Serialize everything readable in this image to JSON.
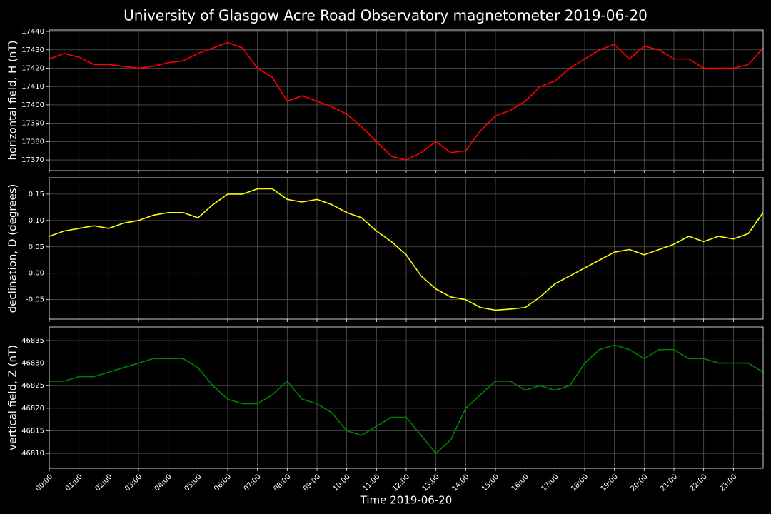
{
  "title": "University of Glasgow Acre Road Observatory magnetometer 2019-06-20",
  "chart_data": [
    {
      "type": "line",
      "ylabel": "horizontal field, H (nT)",
      "color": "#ff0000",
      "x": [
        0,
        0.5,
        1,
        1.5,
        2,
        2.5,
        3,
        3.5,
        4,
        4.5,
        5,
        5.5,
        6,
        6.5,
        7,
        7.5,
        8,
        8.5,
        9,
        9.5,
        10,
        10.5,
        11,
        11.5,
        12,
        12.5,
        13,
        13.5,
        14,
        14.5,
        15,
        15.5,
        16,
        16.5,
        17,
        17.5,
        18,
        18.5,
        19,
        19.5,
        20,
        20.5,
        21,
        21.5,
        22,
        22.5,
        23,
        23.5,
        24
      ],
      "values": [
        17425,
        17428,
        17426,
        17422,
        17422,
        17421,
        17420,
        17421,
        17423,
        17424,
        17428,
        17431,
        17434,
        17431,
        17420,
        17415,
        17402,
        17405,
        17402,
        17399,
        17395,
        17388,
        17380,
        17372,
        17370,
        17374,
        17380,
        17374,
        17375,
        17386,
        17394,
        17397,
        17402,
        17410,
        17413,
        17420,
        17425,
        17430,
        17433,
        17425,
        17432,
        17430,
        17425,
        17425,
        17420,
        17420,
        17420,
        17422,
        17431
      ],
      "xlim": [
        0,
        24
      ],
      "ylim": [
        17364.2,
        17440.8
      ],
      "yticks": [
        17370,
        17380,
        17390,
        17400,
        17410,
        17420,
        17430,
        17440
      ],
      "grid": true
    },
    {
      "type": "line",
      "ylabel": "declination, D (degrees)",
      "color": "#ffff00",
      "x": [
        0,
        0.5,
        1,
        1.5,
        2,
        2.5,
        3,
        3.5,
        4,
        4.5,
        5,
        5.5,
        6,
        6.5,
        7,
        7.5,
        8,
        8.5,
        9,
        9.5,
        10,
        10.5,
        11,
        11.5,
        12,
        12.5,
        13,
        13.5,
        14,
        14.5,
        15,
        15.5,
        16,
        16.5,
        17,
        17.5,
        18,
        18.5,
        19,
        19.5,
        20,
        20.5,
        21,
        21.5,
        22,
        22.5,
        23,
        23.5,
        24
      ],
      "values": [
        0.07,
        0.08,
        0.085,
        0.09,
        0.085,
        0.095,
        0.1,
        0.11,
        0.115,
        0.115,
        0.105,
        0.13,
        0.15,
        0.15,
        0.16,
        0.16,
        0.14,
        0.135,
        0.14,
        0.13,
        0.115,
        0.105,
        0.08,
        0.06,
        0.035,
        -0.005,
        -0.03,
        -0.045,
        -0.05,
        -0.065,
        -0.07,
        -0.068,
        -0.065,
        -0.045,
        -0.02,
        -0.005,
        0.01,
        0.025,
        0.04,
        0.045,
        0.035,
        0.045,
        0.055,
        0.07,
        0.06,
        0.07,
        0.065,
        0.075,
        0.115
      ],
      "xlim": [
        0,
        24
      ],
      "ylim": [
        -0.087,
        0.181
      ],
      "yticks": [
        -0.05,
        {
          "value": 0,
          "label": "0.00"
        },
        0.05,
        {
          "value": 0.1,
          "label": "0.10"
        },
        0.15
      ],
      "grid": true
    },
    {
      "type": "line",
      "ylabel": "vertical field, Z (nT)",
      "xlabel": "Time 2019-06-20",
      "color": "#008000",
      "x": [
        0,
        0.5,
        1,
        1.5,
        2,
        2.5,
        3,
        3.5,
        4,
        4.5,
        5,
        5.5,
        6,
        6.5,
        7,
        7.5,
        8,
        8.5,
        9,
        9.5,
        10,
        10.5,
        11,
        11.5,
        12,
        12.5,
        13,
        13.5,
        14,
        14.5,
        15,
        15.5,
        16,
        16.5,
        17,
        17.5,
        18,
        18.5,
        19,
        19.5,
        20,
        20.5,
        21,
        21.5,
        22,
        22.5,
        23,
        23.5,
        24
      ],
      "values": [
        46826,
        46826,
        46827,
        46827,
        46828,
        46829,
        46830,
        46831,
        46831,
        46831,
        46829,
        46825,
        46822,
        46821,
        46821,
        46823,
        46826,
        46822,
        46821,
        46819,
        46815,
        46814,
        46816,
        46818,
        46818,
        46814,
        46810,
        46813,
        46820,
        46823,
        46826,
        46826,
        46824,
        46825,
        46824,
        46825,
        46830,
        46833,
        46834,
        46833,
        46831,
        46833,
        46833,
        46831,
        46831,
        46830,
        46830,
        46830,
        46828
      ],
      "xlim": [
        0,
        24
      ],
      "ylim": [
        46806.7,
        46838.0
      ],
      "yticks": [
        46810,
        46815,
        46820,
        46825,
        46830,
        46835
      ],
      "xticks": [
        {
          "value": 0,
          "label": "00:00"
        },
        {
          "value": 1,
          "label": "01:00"
        },
        {
          "value": 2,
          "label": "02:00"
        },
        {
          "value": 3,
          "label": "03:00"
        },
        {
          "value": 4,
          "label": "04:00"
        },
        {
          "value": 5,
          "label": "05:00"
        },
        {
          "value": 6,
          "label": "06:00"
        },
        {
          "value": 7,
          "label": "07:00"
        },
        {
          "value": 8,
          "label": "08:00"
        },
        {
          "value": 9,
          "label": "09:00"
        },
        {
          "value": 10,
          "label": "10:00"
        },
        {
          "value": 11,
          "label": "11:00"
        },
        {
          "value": 12,
          "label": "12:00"
        },
        {
          "value": 13,
          "label": "13:00"
        },
        {
          "value": 14,
          "label": "14:00"
        },
        {
          "value": 15,
          "label": "15:00"
        },
        {
          "value": 16,
          "label": "16:00"
        },
        {
          "value": 17,
          "label": "17:00"
        },
        {
          "value": 18,
          "label": "18:00"
        },
        {
          "value": 19,
          "label": "19:00"
        },
        {
          "value": 20,
          "label": "20:00"
        },
        {
          "value": 21,
          "label": "21:00"
        },
        {
          "value": 22,
          "label": "22:00"
        },
        {
          "value": 23,
          "label": "23:00"
        }
      ],
      "grid": true
    }
  ]
}
